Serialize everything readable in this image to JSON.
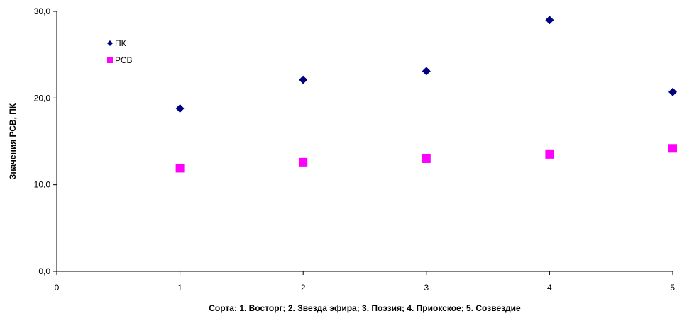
{
  "chart_data": {
    "type": "scatter",
    "xlabel": "Сорта: 1. Восторг; 2. Звезда эфира; 3. Поэзия; 4. Приокское; 5. Созвездие",
    "ylabel": "Значения РСВ, ПК",
    "xlim": [
      0,
      5
    ],
    "ylim": [
      0,
      30
    ],
    "x_ticks": [
      0,
      1,
      2,
      3,
      4,
      5
    ],
    "x_tick_labels": [
      "0",
      "1",
      "2",
      "3",
      "4",
      "5"
    ],
    "y_ticks": [
      0,
      10,
      20,
      30
    ],
    "y_tick_labels": [
      "0,0",
      "10,0",
      "20,0",
      "30,0"
    ],
    "grid": false,
    "legend_position": "top-left",
    "series": [
      {
        "name": "ПК",
        "marker": "diamond",
        "color": "#000080",
        "x": [
          1,
          2,
          3,
          4,
          5
        ],
        "y": [
          18.8,
          22.1,
          23.1,
          29.0,
          20.7
        ]
      },
      {
        "name": "РСВ",
        "marker": "square",
        "color": "#FF00FF",
        "x": [
          1,
          2,
          3,
          4,
          5
        ],
        "y": [
          11.9,
          12.6,
          13.0,
          13.5,
          14.2
        ]
      }
    ]
  }
}
